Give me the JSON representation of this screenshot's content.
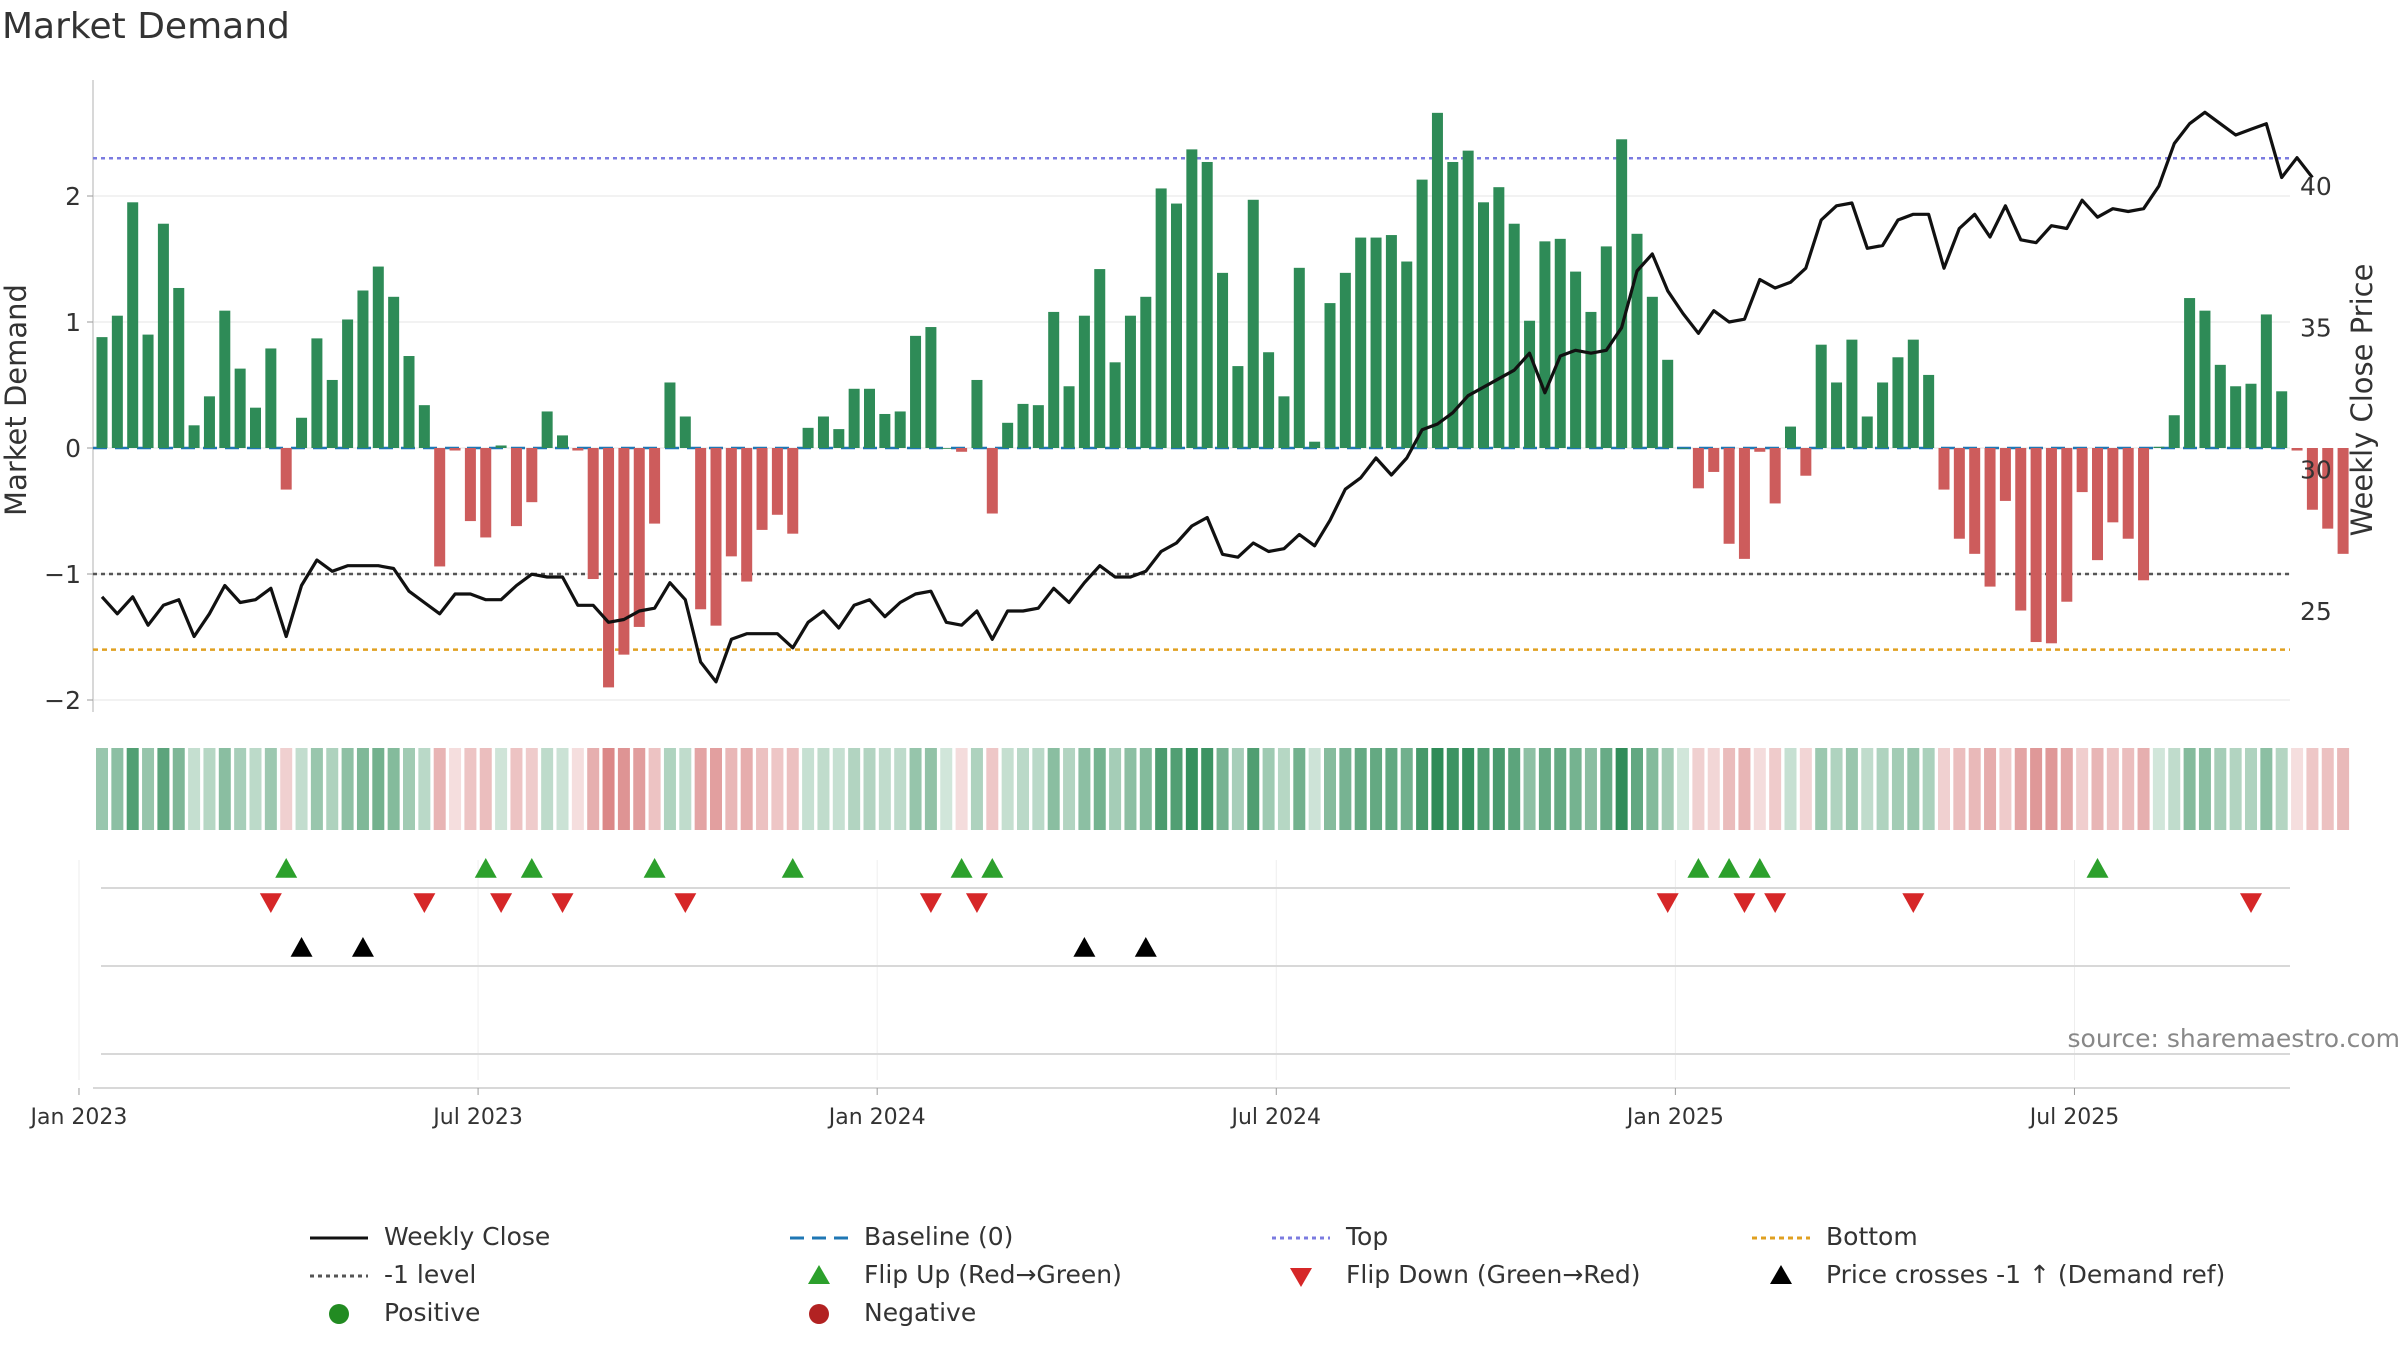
{
  "title": "Market Demand",
  "source": "source: sharemaestro.com",
  "colors": {
    "positive": "#2e8b57",
    "negative": "#cd5c5c",
    "top": "#7b7be0",
    "bottom": "#e0a020",
    "minus1": "#555555",
    "baseline": "#1f77b4",
    "flip_up": "#2ca02c",
    "flip_down": "#d62728",
    "cross": "#000000",
    "positive_dot": "#228b22",
    "negative_dot": "#b22222"
  },
  "legend": [
    {
      "label": "Weekly Close",
      "symbol": "line-solid"
    },
    {
      "label": "Baseline (0)",
      "symbol": "line-dash"
    },
    {
      "label": "Top",
      "symbol": "line-dot-top"
    },
    {
      "label": "Bottom",
      "symbol": "line-dot-bottom"
    },
    {
      "label": "-1 level",
      "symbol": "line-dot-minus1"
    },
    {
      "label": "Flip Up (Red→Green)",
      "symbol": "tri-up-green"
    },
    {
      "label": "Flip Down (Green→Red)",
      "symbol": "tri-down-red"
    },
    {
      "label": "Price crosses -1 ↑ (Demand ref)",
      "symbol": "tri-up-black"
    },
    {
      "label": "Positive",
      "symbol": "dot-green"
    },
    {
      "label": "Negative",
      "symbol": "dot-red"
    }
  ],
  "chart_data": {
    "type": "bar+line",
    "title": "Market Demand",
    "ylabel_left": "Market Demand",
    "ylabel_right": "Weekly Close Price",
    "ylim_left": [
      -2.1,
      2.9
    ],
    "ylim_right": [
      21.9,
      44.0
    ],
    "yticks_left": [
      2,
      1,
      0,
      -1,
      -2
    ],
    "yticks_left_labels": [
      "2",
      "1",
      "0",
      "−1",
      "−2"
    ],
    "yticks_right": [
      40,
      35,
      30,
      25
    ],
    "xtick_labels": [
      "Jan 2023",
      "Jul 2023",
      "Jan 2024",
      "Jul 2024",
      "Jan 2025",
      "Jul 2025"
    ],
    "xtick_weeks": [
      0,
      26,
      52,
      78,
      104,
      130
    ],
    "first_week_offset": -1.5,
    "top_level": 2.3,
    "bottom_level": -1.6,
    "minus1_level": -1,
    "demand": [
      0.88,
      1.05,
      1.95,
      0.9,
      1.78,
      1.27,
      0.18,
      0.41,
      1.09,
      0.63,
      0.32,
      0.79,
      -0.33,
      0.24,
      0.87,
      0.54,
      1.02,
      1.25,
      1.44,
      1.2,
      0.73,
      0.34,
      -0.94,
      -0.02,
      -0.58,
      -0.71,
      0.02,
      -0.62,
      -0.43,
      0.29,
      0.1,
      -0.02,
      -1.04,
      -1.9,
      -1.64,
      -1.42,
      -0.6,
      0.52,
      0.25,
      -1.28,
      -1.41,
      -0.86,
      -1.06,
      -0.65,
      -0.53,
      -0.68,
      0.16,
      0.25,
      0.15,
      0.47,
      0.47,
      0.27,
      0.29,
      0.89,
      0.96,
      0.0,
      -0.03,
      0.54,
      -0.52,
      0.2,
      0.35,
      0.34,
      1.08,
      0.49,
      1.05,
      1.42,
      0.68,
      1.05,
      1.2,
      2.06,
      1.94,
      2.37,
      2.27,
      1.39,
      0.65,
      1.97,
      0.76,
      0.41,
      1.43,
      0.05,
      1.15,
      1.39,
      1.67,
      1.67,
      1.69,
      1.48,
      2.13,
      2.66,
      2.27,
      2.36,
      1.95,
      2.07,
      1.78,
      1.01,
      1.64,
      1.66,
      1.4,
      1.08,
      1.6,
      2.45,
      1.7,
      1.2,
      0.7,
      0.0,
      -0.32,
      -0.19,
      -0.76,
      -0.88,
      -0.03,
      -0.44,
      0.17,
      -0.22,
      0.82,
      0.52,
      0.86,
      0.25,
      0.52,
      0.72,
      0.86,
      0.58,
      -0.33,
      -0.72,
      -0.84,
      -1.1,
      -0.42,
      -1.29,
      -1.54,
      -1.55,
      -1.22,
      -0.35,
      -0.89,
      -0.59,
      -0.72,
      -1.05,
      0.01,
      0.26,
      1.19,
      1.09,
      0.66,
      0.49,
      0.51,
      1.06,
      0.45,
      -0.02,
      -0.49,
      -0.64,
      -0.84
    ],
    "close": [
      25.5,
      24.9,
      25.5,
      24.5,
      25.2,
      25.4,
      24.1,
      24.9,
      25.9,
      25.3,
      25.4,
      25.8,
      24.1,
      25.9,
      26.8,
      26.4,
      26.6,
      26.6,
      26.6,
      26.5,
      25.7,
      25.3,
      24.9,
      25.6,
      25.6,
      25.4,
      25.4,
      25.9,
      26.3,
      26.2,
      26.2,
      25.2,
      25.2,
      24.6,
      24.7,
      25.0,
      25.1,
      26.0,
      25.4,
      23.2,
      22.5,
      24.0,
      24.2,
      24.2,
      24.2,
      23.7,
      24.6,
      25.0,
      24.4,
      25.2,
      25.4,
      24.8,
      25.3,
      25.6,
      25.7,
      24.6,
      24.5,
      25.0,
      24.0,
      25.0,
      25.0,
      25.1,
      25.8,
      25.3,
      26.0,
      26.6,
      26.2,
      26.2,
      26.4,
      27.1,
      27.4,
      28.0,
      28.3,
      27.0,
      26.9,
      27.4,
      27.1,
      27.2,
      27.7,
      27.3,
      28.2,
      29.3,
      29.7,
      30.4,
      29.8,
      30.4,
      31.4,
      31.6,
      32.0,
      32.6,
      32.9,
      33.2,
      33.5,
      34.1,
      32.7,
      34.0,
      34.2,
      34.1,
      34.2,
      35.0,
      37.0,
      37.6,
      36.3,
      35.5,
      34.8,
      35.6,
      35.2,
      35.3,
      36.7,
      36.4,
      36.6,
      37.1,
      38.8,
      39.3,
      39.4,
      37.8,
      37.9,
      38.8,
      39.0,
      39.0,
      37.1,
      38.5,
      39.0,
      38.2,
      39.3,
      38.1,
      38.0,
      38.6,
      38.5,
      39.5,
      38.9,
      39.2,
      39.1,
      39.2,
      40.0,
      41.5,
      42.2,
      42.6,
      42.2,
      41.8,
      42.0,
      42.2,
      40.3,
      41.0,
      40.3
    ],
    "flip_up_weeks": [
      12,
      25,
      28,
      36,
      45,
      56,
      58,
      104,
      106,
      108,
      130
    ],
    "flip_down_weeks": [
      11,
      21,
      26,
      30,
      38,
      54,
      57,
      102,
      107,
      109,
      118,
      140
    ],
    "price_cross_weeks": [
      13,
      17,
      64,
      68
    ]
  }
}
